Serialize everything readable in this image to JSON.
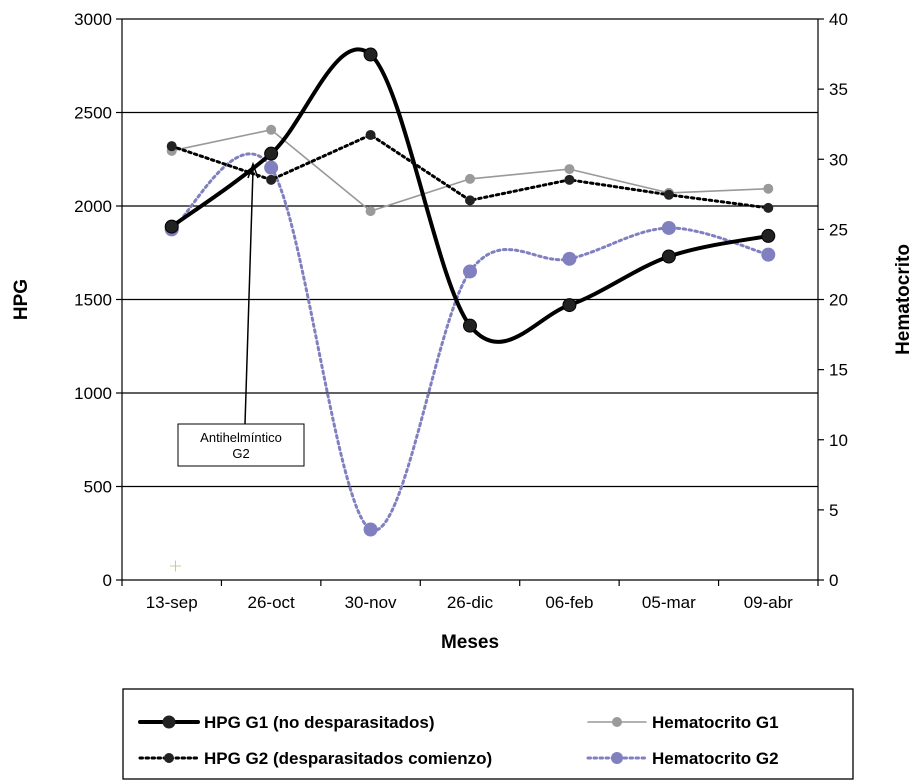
{
  "chart_data": {
    "type": "line",
    "categories": [
      "13-sep",
      "26-oct",
      "30-nov",
      "26-dic",
      "06-feb",
      "05-mar",
      "09-abr"
    ],
    "xlabel": "Meses",
    "ylabel_left": "HPG",
    "ylabel_right": "Hematocrito",
    "ylim_left": [
      0,
      3000
    ],
    "ylim_right": [
      0,
      40
    ],
    "yticks_left": [
      0,
      500,
      1000,
      1500,
      2000,
      2500,
      3000
    ],
    "yticks_right": [
      0,
      5,
      10,
      15,
      20,
      25,
      30,
      35,
      40
    ],
    "grid": "horizontal",
    "legend_position": "bottom",
    "series": [
      {
        "name": "HPG G1 (no desparasitados)",
        "axis": "left",
        "style": "solid-thick",
        "color": "#000000",
        "smooth": true,
        "values": [
          1890,
          2280,
          2810,
          1360,
          1470,
          1730,
          1840
        ]
      },
      {
        "name": "HPG G2 (desparasitados comienzo)",
        "axis": "left",
        "style": "dotted",
        "color": "#000000",
        "smooth": false,
        "values": [
          2320,
          2140,
          2380,
          2030,
          2140,
          2060,
          1990
        ]
      },
      {
        "name": "Hematocrito G1",
        "axis": "right",
        "style": "solid-thin",
        "color": "#999999",
        "smooth": false,
        "values": [
          30.6,
          32.1,
          26.3,
          28.6,
          29.3,
          27.6,
          27.9
        ]
      },
      {
        "name": "Hematocrito G2",
        "axis": "right",
        "style": "dotted",
        "color": "#8080c0",
        "smooth": true,
        "values": [
          25.0,
          29.4,
          3.6,
          22.0,
          22.9,
          25.1,
          23.2
        ]
      }
    ],
    "annotation": {
      "text_line1": "Antihelmíntico",
      "text_line2": "G2",
      "category": "26-oct"
    }
  }
}
